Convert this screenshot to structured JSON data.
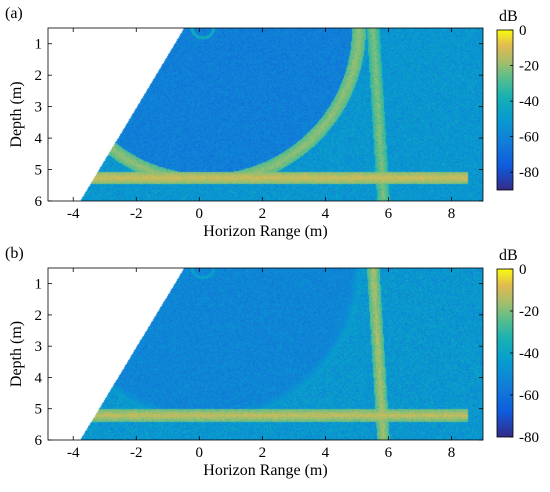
{
  "chart_data": [
    {
      "type": "heatmap",
      "panel_label": "(a)",
      "xlabel": "Horizon Range (m)",
      "ylabel": "Depth (m)",
      "xlim": [
        -4.8,
        9
      ],
      "ylim": [
        0.5,
        6
      ],
      "y_reversed": true,
      "x_ticks": [
        -4,
        -2,
        0,
        2,
        4,
        6,
        8
      ],
      "y_ticks": [
        1,
        2,
        3,
        4,
        5,
        6
      ],
      "colorbar": {
        "label": "dB",
        "ticks": [
          0,
          -20,
          -40,
          -60,
          -80
        ],
        "range": [
          -90,
          0
        ],
        "colormap": "parula"
      },
      "field": {
        "background_db": -52,
        "blank_wedge": {
          "apex_top_x": -0.5,
          "bottom_x": -3.8,
          "depth_top": 0.5,
          "depth_bottom": 6
        },
        "interface_depth": 5.25,
        "interface_x_range": [
          -4.0,
          8.5
        ],
        "interface_db": -12,
        "vertical_line_x": 5.65,
        "vertical_line_db": -22,
        "arc": {
          "center_x": 0.2,
          "center_depth": 0.5,
          "radius": 4.85,
          "db": -20
        },
        "arc_region_db": -62,
        "outer_arc_hint_db": -50
      }
    },
    {
      "type": "heatmap",
      "panel_label": "(b)",
      "xlabel": "Horizon Range (m)",
      "ylabel": "Depth (m)",
      "xlim": [
        -4.8,
        9
      ],
      "ylim": [
        0.5,
        6
      ],
      "y_reversed": true,
      "x_ticks": [
        -4,
        -2,
        0,
        2,
        4,
        6,
        8
      ],
      "y_ticks": [
        1,
        2,
        3,
        4,
        5,
        6
      ],
      "colorbar": {
        "label": "dB",
        "ticks": [
          0,
          -20,
          -40,
          -60,
          -80
        ],
        "range": [
          -80,
          0
        ],
        "colormap": "parula"
      },
      "field": {
        "background_db": -46,
        "blank_wedge": {
          "apex_top_x": -0.5,
          "bottom_x": -3.8,
          "depth_top": 0.5,
          "depth_bottom": 6
        },
        "interface_depth": 5.2,
        "interface_x_range": [
          -3.5,
          8.5
        ],
        "interface_db": -12,
        "vertical_line_x": 5.65,
        "vertical_line_db": -15,
        "arc": {
          "center_x": 0.2,
          "center_depth": 0.5,
          "radius": 4.85,
          "db": -45
        },
        "arc_region_db": -52,
        "outer_arc_hint_db": -46
      }
    }
  ]
}
